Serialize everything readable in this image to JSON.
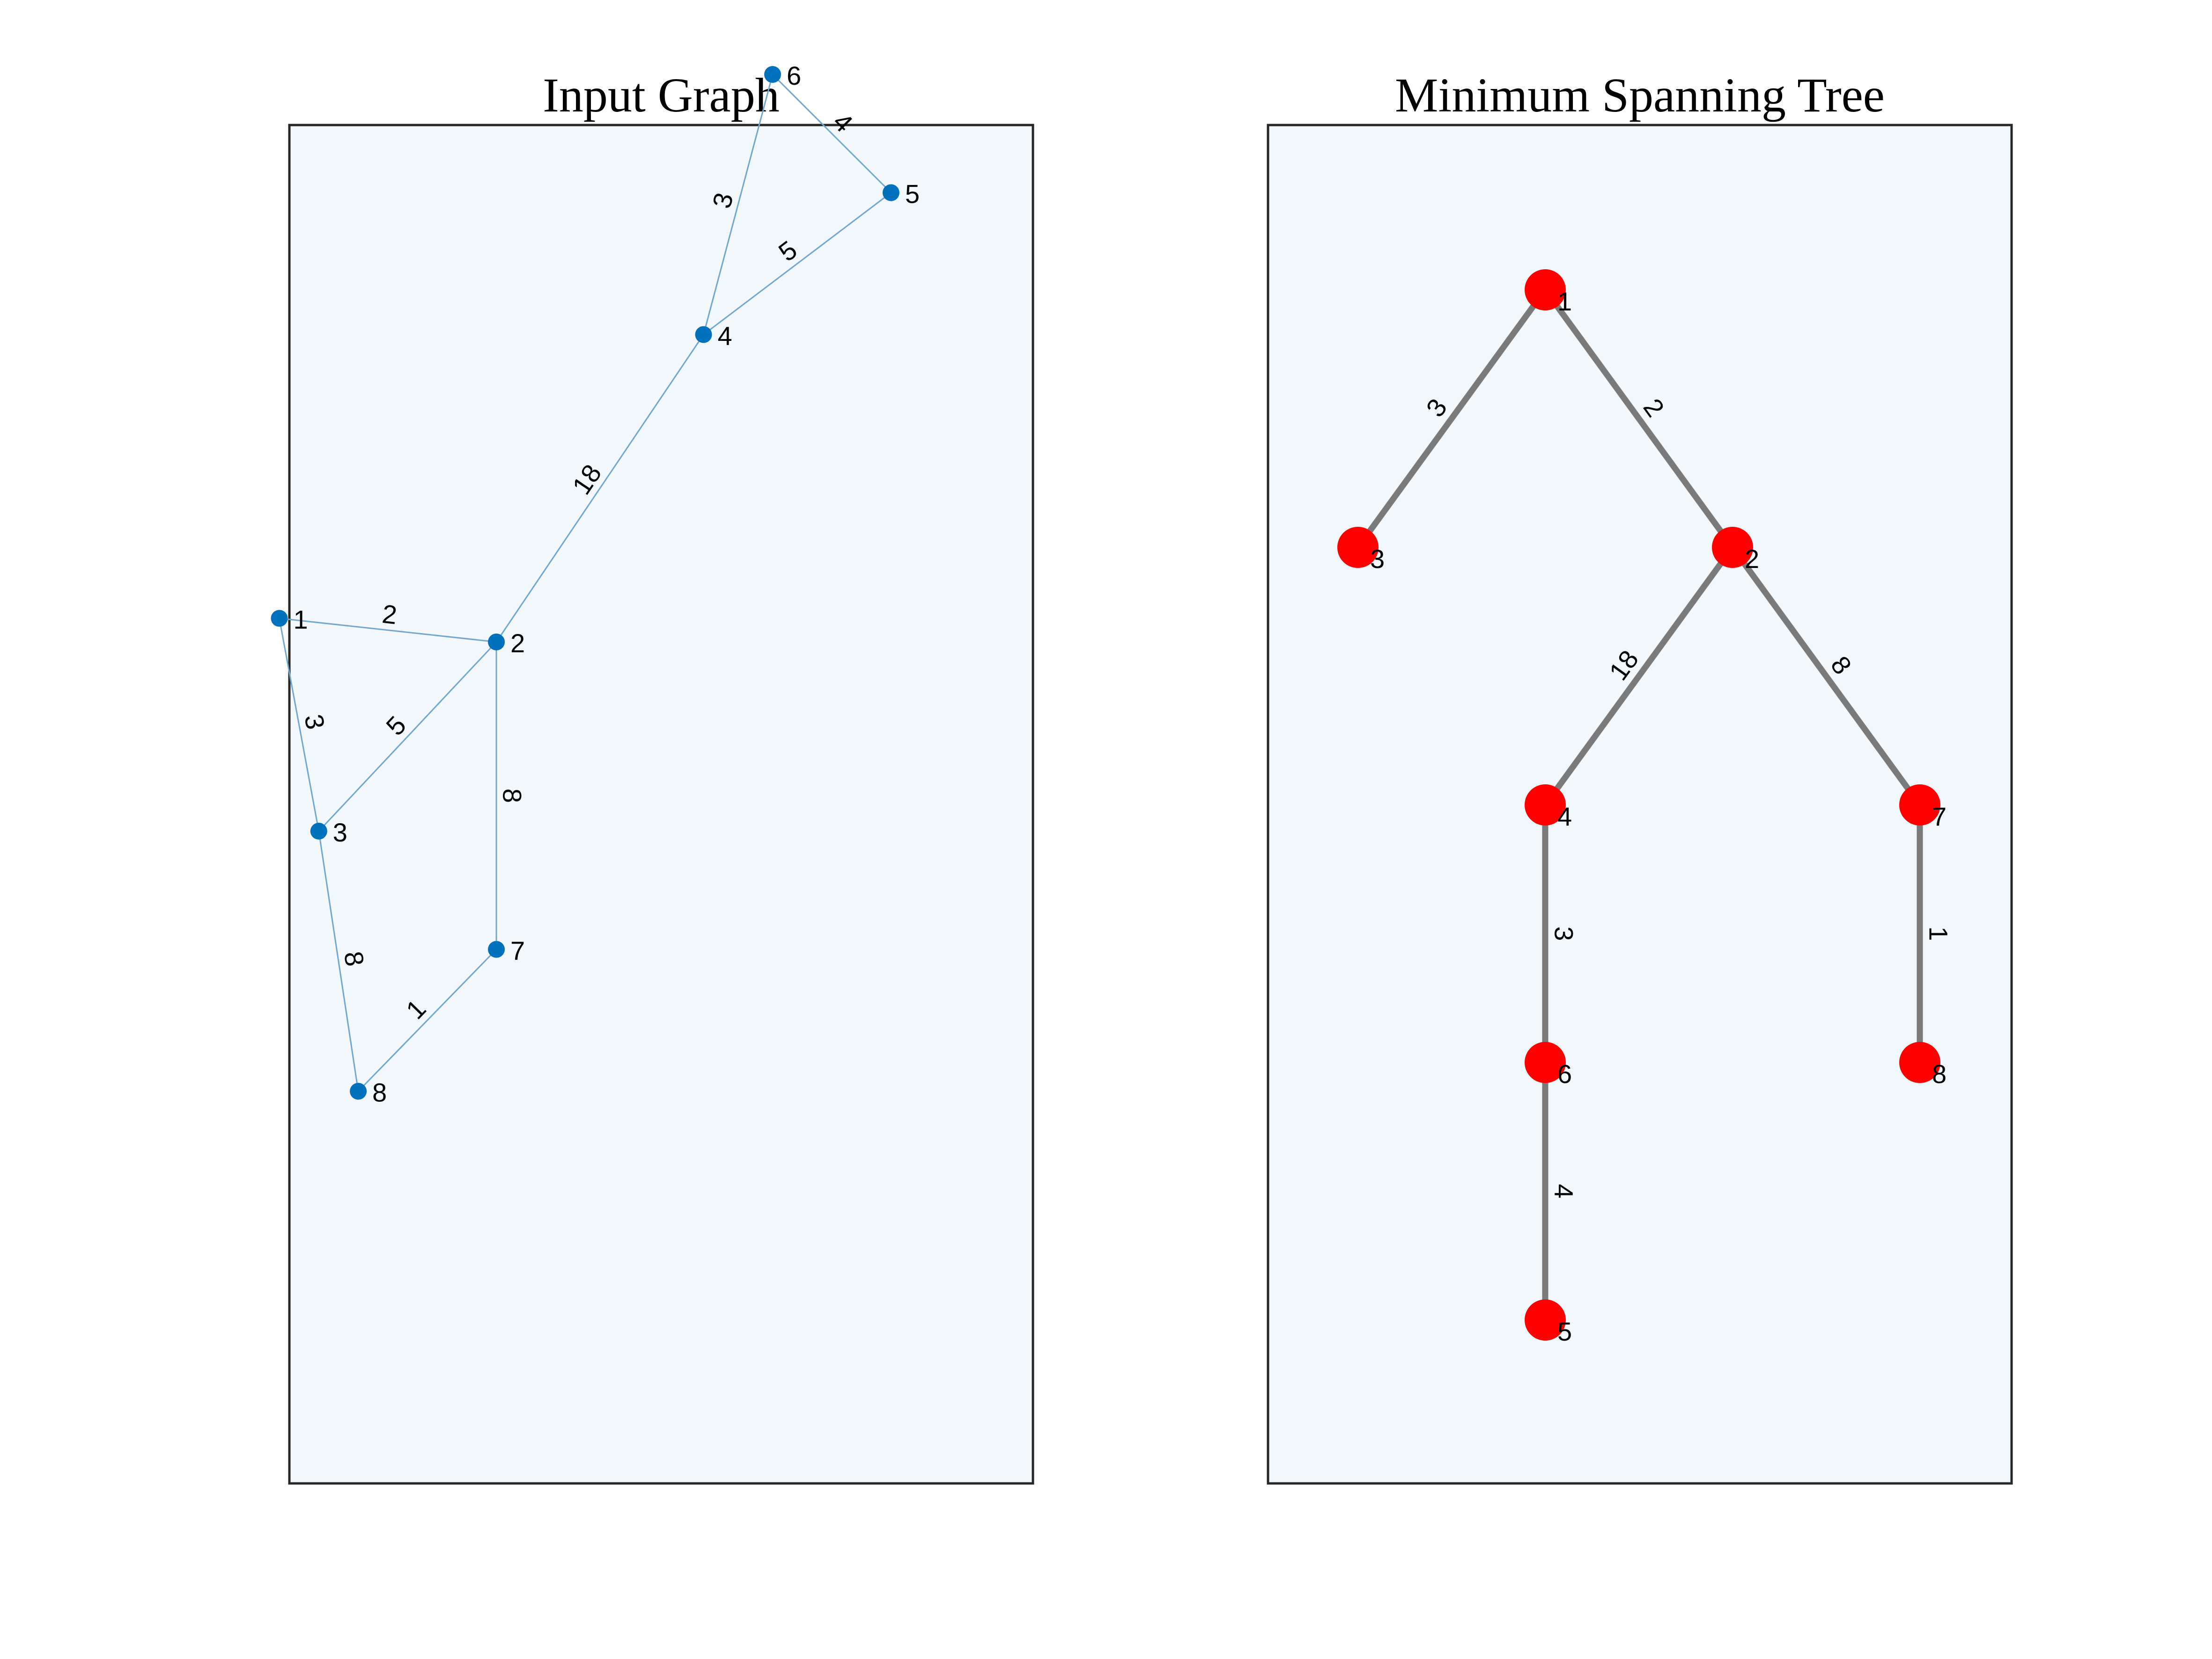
{
  "panels": [
    {
      "title": "Input Graph",
      "colors": {
        "node": "#0072bd",
        "edge": "#6fa7cf",
        "background": "#f2f7fb"
      },
      "nodes": [
        {
          "id": "1",
          "x": -1.5,
          "y": 1.9
        },
        {
          "id": "2",
          "x": -0.4,
          "y": 1.8
        },
        {
          "id": "3",
          "x": -1.3,
          "y": 1.0
        },
        {
          "id": "4",
          "x": 0.65,
          "y": 3.1
        },
        {
          "id": "5",
          "x": 1.6,
          "y": 3.7
        },
        {
          "id": "6",
          "x": 1.0,
          "y": 4.2
        },
        {
          "id": "7",
          "x": -0.4,
          "y": 0.5
        },
        {
          "id": "8",
          "x": -1.1,
          "y": -0.1
        }
      ],
      "edges": [
        {
          "source": "1",
          "target": "2",
          "weight": "2"
        },
        {
          "source": "1",
          "target": "3",
          "weight": "3"
        },
        {
          "source": "2",
          "target": "3",
          "weight": "5"
        },
        {
          "source": "2",
          "target": "4",
          "weight": "18"
        },
        {
          "source": "2",
          "target": "7",
          "weight": "8"
        },
        {
          "source": "3",
          "target": "8",
          "weight": "8"
        },
        {
          "source": "4",
          "target": "5",
          "weight": "5"
        },
        {
          "source": "4",
          "target": "6",
          "weight": "3"
        },
        {
          "source": "5",
          "target": "6",
          "weight": "4"
        },
        {
          "source": "7",
          "target": "8",
          "weight": "1"
        }
      ]
    },
    {
      "title": "Minimum Spanning Tree",
      "colors": {
        "node": "#ff0000",
        "edge": "#7a7a7a",
        "background": "#f2f7fb"
      },
      "nodes": [
        {
          "id": "1",
          "x": 0.0,
          "y": 4.0
        },
        {
          "id": "3",
          "x": -1.0,
          "y": 3.0
        },
        {
          "id": "2",
          "x": 1.0,
          "y": 3.0
        },
        {
          "id": "4",
          "x": 0.0,
          "y": 2.0
        },
        {
          "id": "7",
          "x": 2.0,
          "y": 2.0
        },
        {
          "id": "6",
          "x": 0.0,
          "y": 1.0
        },
        {
          "id": "8",
          "x": 2.0,
          "y": 1.0
        },
        {
          "id": "5",
          "x": 0.0,
          "y": 0.0
        }
      ],
      "edges": [
        {
          "source": "1",
          "target": "3",
          "weight": "3"
        },
        {
          "source": "1",
          "target": "2",
          "weight": "2"
        },
        {
          "source": "2",
          "target": "4",
          "weight": "18"
        },
        {
          "source": "2",
          "target": "7",
          "weight": "8"
        },
        {
          "source": "4",
          "target": "6",
          "weight": "3"
        },
        {
          "source": "7",
          "target": "8",
          "weight": "1"
        },
        {
          "source": "6",
          "target": "5",
          "weight": "4"
        }
      ]
    }
  ]
}
